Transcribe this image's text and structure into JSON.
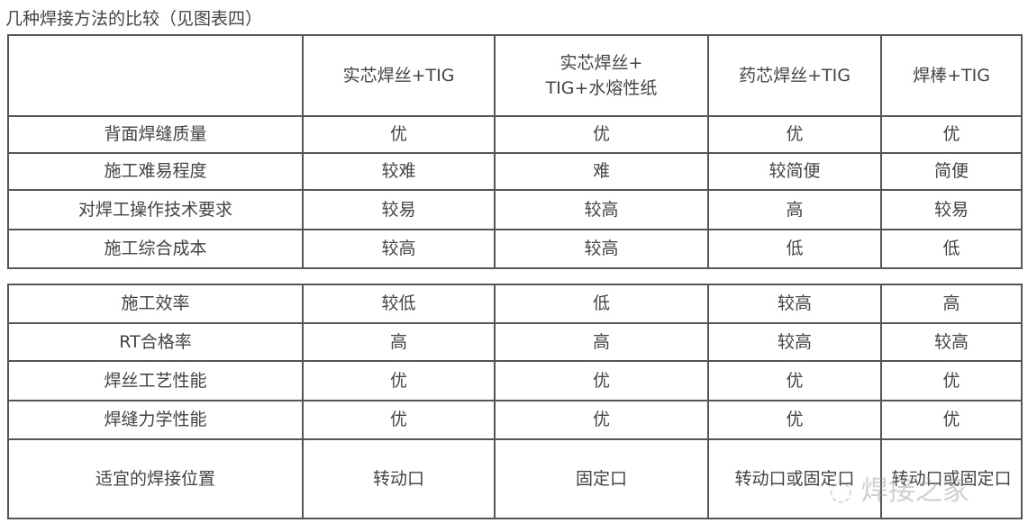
{
  "title": "几种焊接方法的比较（见图表四）",
  "table1": {
    "headers": [
      "",
      "实芯焊丝+TIG",
      "实芯焊丝+\nTIG+水熔性纸",
      "药芯焊丝+TIG",
      "焊棒+TIG"
    ],
    "rows": [
      [
        "背面焊缝质量",
        "优",
        "优",
        "优",
        "优"
      ],
      [
        "施工难易程度",
        "较难",
        "难",
        "较简便",
        "简便"
      ],
      [
        "对焊工操作技术要求",
        "较易",
        "较高",
        "高",
        "较易"
      ],
      [
        "施工综合成本",
        "较高",
        "较高",
        "低",
        "低"
      ]
    ]
  },
  "table2": {
    "rows": [
      [
        "施工效率",
        "较低",
        "低",
        "较高",
        "高"
      ],
      [
        "RT合格率",
        "高",
        "高",
        "较高",
        "较高"
      ],
      [
        "焊丝工艺性能",
        "优",
        "优",
        "优",
        "优"
      ],
      [
        "焊缝力学性能",
        "优",
        "优",
        "优",
        "优"
      ],
      [
        "适宜的焊接位置",
        "转动口",
        "固定口",
        "转动口或固定口",
        "转动口或固定口"
      ]
    ]
  },
  "watermark": "焊接之家"
}
